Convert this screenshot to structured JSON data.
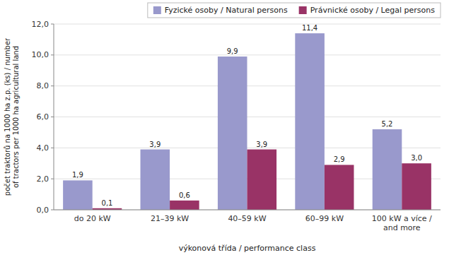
{
  "chart_data": {
    "type": "bar",
    "categories": [
      "do 20 kW",
      "21–39 kW",
      "40–59 kW",
      "60–99 kW",
      "100 kW a více /\nand more"
    ],
    "series": [
      {
        "name": "Fyzické osoby / Natural persons",
        "color": "#9999cc",
        "values": [
          1.9,
          3.9,
          9.9,
          11.4,
          5.2
        ],
        "value_labels": [
          "1,9",
          "3,9",
          "9,9",
          "11,4",
          "5,2"
        ]
      },
      {
        "name": "Právnické osoby / Legal persons",
        "color": "#993366",
        "values": [
          0.1,
          0.6,
          3.9,
          2.9,
          3.0
        ],
        "value_labels": [
          "0,1",
          "0,6",
          "3,9",
          "2,9",
          "3,0"
        ]
      }
    ],
    "xlabel": "výkonová třída / performance  class",
    "ylabel": "počet traktorů na 1000 ha z.p. (ks) / number\nof tractors  per 1000 ha agricultural land",
    "ylim": [
      0,
      12.0
    ],
    "yticks": [
      {
        "value": 0.0,
        "label": "0,0"
      },
      {
        "value": 2.0,
        "label": "2,0"
      },
      {
        "value": 4.0,
        "label": "4,0"
      },
      {
        "value": 6.0,
        "label": "6,0"
      },
      {
        "value": 8.0,
        "label": "8,0"
      },
      {
        "value": 10.0,
        "label": "10,0"
      },
      {
        "value": 12.0,
        "label": "12,0"
      }
    ],
    "grid": true,
    "legend": "upper right",
    "data_labels": true
  }
}
